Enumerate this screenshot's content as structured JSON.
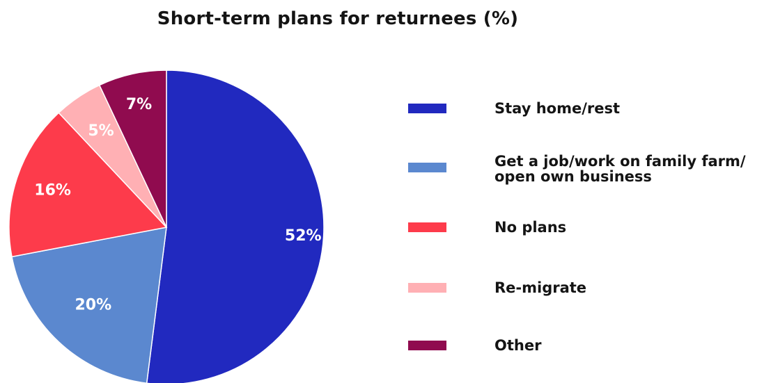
{
  "chart_data": {
    "type": "pie",
    "title": "Short-term plans for returnees (%)",
    "start_angle": "12 o'clock",
    "direction": "clockwise",
    "slices": [
      {
        "label": "Stay home/rest",
        "value": 52,
        "display": "52%",
        "color": "#2129bf"
      },
      {
        "label": "Get a job/work on family farm/\nopen own business",
        "value": 20,
        "display": "20%",
        "color": "#5b88cf"
      },
      {
        "label": "No plans",
        "value": 16,
        "display": "16%",
        "color": "#fd3b4b"
      },
      {
        "label": "Re-migrate",
        "value": 5,
        "display": "5%",
        "color": "#ffb0b4"
      },
      {
        "label": "Other",
        "value": 7,
        "display": "7%",
        "color": "#900b4f"
      }
    ],
    "legend_position": "right"
  }
}
